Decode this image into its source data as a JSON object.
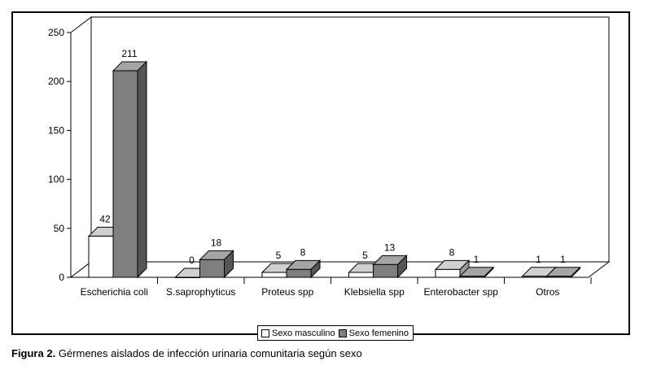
{
  "caption": {
    "label": "Figura 2.",
    "text": "Gérmenes aislados de infección urinaria comunitaria según sexo"
  },
  "colors": {
    "male": "#ffffff",
    "female": "#7f7f7f",
    "female_top": "#a5a5a5",
    "female_side": "#555555",
    "male_top": "#d0d0d0",
    "male_side": "#9a9a9a"
  },
  "chart_data": {
    "type": "bar",
    "title": "",
    "xlabel": "",
    "ylabel": "",
    "ylim": [
      0,
      250
    ],
    "yticks": [
      0,
      50,
      100,
      150,
      200,
      250
    ],
    "grid": false,
    "legend_position": "bottom-center",
    "categories": [
      "Escherichia coli",
      "S.saprophyticus",
      "Proteus spp",
      "Klebsiella spp",
      "Enterobacter spp",
      "Otros"
    ],
    "series": [
      {
        "name": "Sexo masculino",
        "values": [
          42,
          0,
          5,
          5,
          8,
          1
        ]
      },
      {
        "name": "Sexo femenino",
        "values": [
          211,
          18,
          8,
          13,
          1,
          1
        ]
      }
    ],
    "data_labels": true
  }
}
